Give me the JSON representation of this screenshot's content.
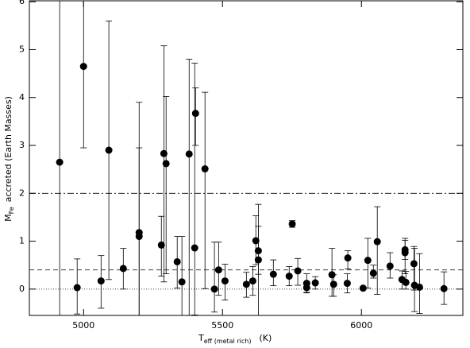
{
  "chart_data": {
    "type": "scatter",
    "color": "#000000",
    "xlabel": {
      "main": "T",
      "sub": "eff (metal rich)",
      "unit": "(K)"
    },
    "ylabel": {
      "main": "M",
      "sub": "Fe",
      "rest": "accreted (Earth Masses)"
    },
    "xlim": [
      4805,
      6365
    ],
    "ylim": [
      -0.55,
      6.02
    ],
    "xticks": [
      5000,
      5500,
      6000
    ],
    "yticks": [
      0,
      1,
      2,
      3,
      4,
      5,
      6
    ],
    "hlines": [
      {
        "y": 2,
        "style": "dashdot"
      },
      {
        "y": 0.4,
        "style": "dashed"
      },
      {
        "y": 0,
        "style": "dotted"
      }
    ],
    "x": [
      4914,
      4977,
      5000,
      5063,
      5091,
      5143,
      5200,
      5200,
      5280,
      5289,
      5297,
      5337,
      5354,
      5380,
      5400,
      5403,
      5437,
      5471,
      5486,
      5509,
      5586,
      5609,
      5620,
      5629,
      5629,
      5683,
      5740,
      5751,
      5771,
      5803,
      5803,
      5834,
      5894,
      5900,
      5949,
      5951,
      6006,
      6023,
      6043,
      6057,
      6103,
      6146,
      6157,
      6157,
      6160,
      6189,
      6191,
      6209,
      6297
    ],
    "values": [
      2.65,
      0.03,
      4.65,
      0.17,
      2.9,
      0.43,
      1.18,
      1.1,
      0.92,
      2.83,
      2.62,
      0.57,
      0.15,
      2.82,
      0.86,
      3.67,
      2.51,
      0.0,
      0.4,
      0.17,
      0.1,
      0.17,
      1.01,
      0.8,
      0.61,
      0.31,
      0.27,
      1.36,
      0.38,
      0.12,
      0.03,
      0.13,
      0.3,
      0.1,
      0.12,
      0.65,
      0.02,
      0.6,
      0.33,
      0.99,
      0.48,
      0.2,
      0.76,
      0.82,
      0.14,
      0.53,
      0.08,
      0.04,
      0.01
    ],
    "err_plus": [
      3.4,
      0.6,
      1.4,
      0.53,
      2.7,
      0.42,
      2.72,
      1.85,
      0.6,
      2.25,
      1.4,
      0.53,
      0.95,
      1.98,
      3.86,
      0.53,
      1.6,
      0.98,
      0.58,
      0.35,
      0.25,
      0.3,
      0.52,
      0.97,
      0.7,
      0.3,
      0.2,
      0.07,
      0.26,
      0.2,
      0.1,
      0.13,
      0.55,
      0.2,
      0.2,
      0.15,
      0.03,
      0.46,
      0.17,
      0.73,
      0.28,
      0.18,
      0.3,
      0.2,
      0.23,
      0.36,
      0.77,
      0.7,
      0.35
    ],
    "err_minus": [
      3.2,
      0.55,
      1.7,
      0.57,
      2.7,
      0.43,
      1.73,
      1.65,
      0.65,
      2.68,
      2.3,
      0.55,
      0.7,
      3.37,
      1.4,
      0.67,
      2.5,
      0.48,
      0.53,
      0.4,
      0.27,
      0.3,
      0.5,
      1.35,
      0.3,
      0.24,
      0.2,
      0.07,
      0.3,
      0.2,
      0.1,
      0.13,
      0.45,
      0.25,
      0.2,
      0.23,
      0.03,
      0.58,
      0.1,
      1.1,
      0.25,
      0.2,
      0.44,
      0.2,
      0.14,
      0.55,
      0.55,
      0.55,
      0.33
    ]
  }
}
